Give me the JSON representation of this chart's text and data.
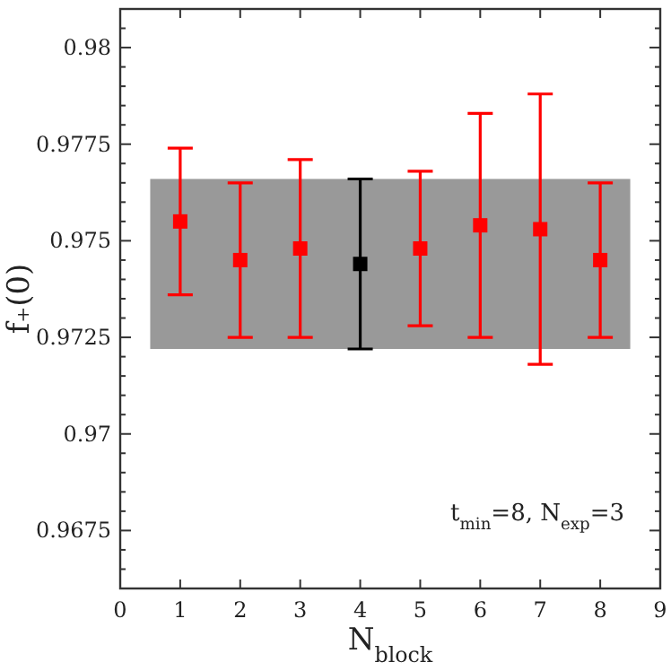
{
  "chart_data": {
    "type": "scatter",
    "xlabel": "N$_{block}$",
    "ylabel": "f₊(0)",
    "xlim": [
      0,
      9
    ],
    "xticks": [
      0,
      1,
      2,
      3,
      4,
      5,
      6,
      7,
      8,
      9
    ],
    "ylim": [
      0.966,
      0.981
    ],
    "yticks": [
      {
        "value": 0.9665,
        "label": null
      },
      {
        "value": 0.967,
        "label": null
      },
      0.9675,
      {
        "value": 0.968,
        "label": null
      },
      {
        "value": 0.9685,
        "label": null
      },
      {
        "value": 0.969,
        "label": null
      },
      {
        "value": 0.9695,
        "label": null
      },
      0.97,
      {
        "value": 0.9705,
        "label": null
      },
      {
        "value": 0.971,
        "label": null
      },
      {
        "value": 0.9715,
        "label": null
      },
      {
        "value": 0.972,
        "label": null
      },
      0.9725,
      {
        "value": 0.973,
        "label": null
      },
      {
        "value": 0.9735,
        "label": null
      },
      {
        "value": 0.974,
        "label": null
      },
      {
        "value": 0.9745,
        "label": null
      },
      0.975,
      {
        "value": 0.9755,
        "label": null
      },
      {
        "value": 0.976,
        "label": null
      },
      {
        "value": 0.9765,
        "label": null
      },
      {
        "value": 0.977,
        "label": null
      },
      0.9775,
      {
        "value": 0.978,
        "label": null
      },
      {
        "value": 0.9785,
        "label": null
      },
      {
        "value": 0.979,
        "label": null
      },
      {
        "value": 0.9795,
        "label": null
      },
      0.98,
      {
        "value": 0.9805,
        "label": null
      }
    ],
    "marker": "square",
    "grid": false,
    "bands": [
      {
        "axis": "y",
        "from": 0.9722,
        "to": 0.9766,
        "color": "#999999"
      }
    ],
    "series": [
      {
        "color": "#ff0000",
        "x": [
          1,
          2,
          3,
          5,
          6,
          7,
          8
        ],
        "values": [
          0.9755,
          0.9745,
          0.9748,
          0.9748,
          0.9754,
          0.9753,
          0.9745
        ],
        "errors": [
          [
            0.9736,
            0.9774
          ],
          [
            0.9725,
            0.9765
          ],
          [
            0.9725,
            0.9771
          ],
          [
            0.9728,
            0.9768
          ],
          [
            0.9725,
            0.9783
          ],
          [
            0.9718,
            0.9788
          ],
          [
            0.9725,
            0.9765
          ]
        ]
      },
      {
        "color": "#000000",
        "x": [
          4
        ],
        "values": [
          0.9744
        ],
        "errors": [
          [
            0.9722,
            0.9766
          ]
        ]
      }
    ],
    "annotations": [
      "t$_{min}$=8, N$_{exp}$=3"
    ]
  }
}
